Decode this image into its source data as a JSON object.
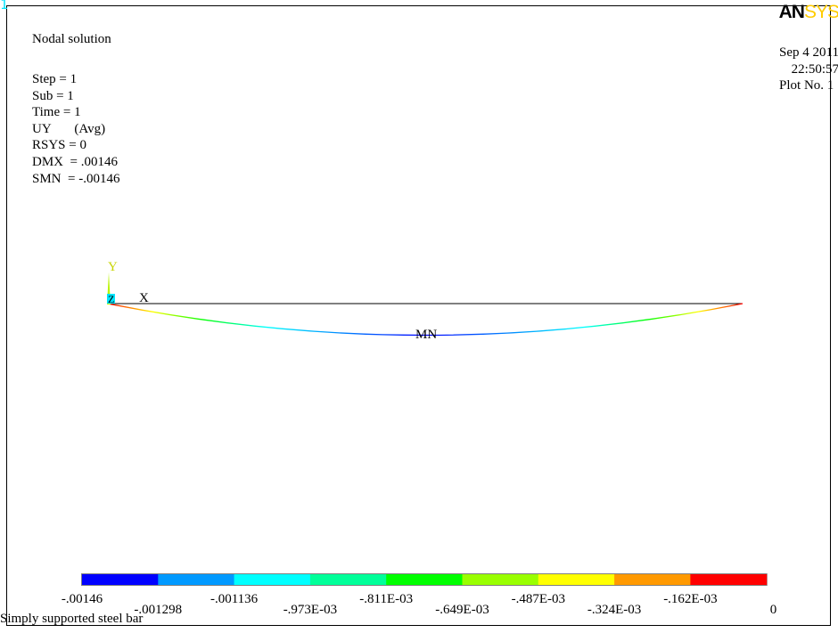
{
  "window_number": "1",
  "logo": {
    "part1": "AN",
    "part2": "SYS",
    "accent_color": "#ffcc00"
  },
  "title": "Nodal solution",
  "info_lines": [
    "Step = 1",
    "Sub = 1",
    "Time = 1",
    "UY       (Avg)",
    "RSYS = 0",
    "DMX  = .00146",
    "SMN  = -.00146"
  ],
  "date": "Sep 4 2011",
  "time": "22:50:57",
  "plot_no": "Plot No. 1",
  "axis": {
    "y": "Y",
    "z": "Z",
    "x": "X"
  },
  "min_label": "MN",
  "subtitle": "Simply supported steel bar",
  "legend": {
    "colors": [
      "#0000ff",
      "#0099ff",
      "#00ffff",
      "#00ff99",
      "#00ff00",
      "#99ff00",
      "#ffff00",
      "#ff9900",
      "#ff0000"
    ],
    "labels": [
      "-.00146",
      "-.001298",
      "-.001136",
      "-.973E-03",
      "-.811E-03",
      "-.649E-03",
      "-.487E-03",
      "-.324E-03",
      "-.162E-03",
      "0"
    ]
  }
}
